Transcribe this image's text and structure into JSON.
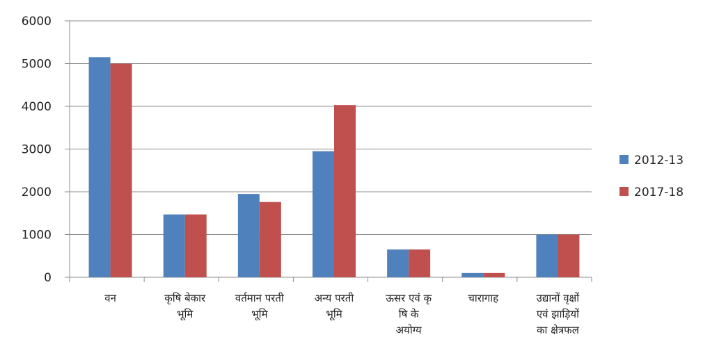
{
  "chart_data": {
    "type": "bar",
    "categories": [
      [
        "वन"
      ],
      [
        "कृषि बेकार",
        "भूमि"
      ],
      [
        "वर्तमान परती",
        "भूमि"
      ],
      [
        "अन्य परती",
        "भूमि"
      ],
      [
        "ऊसर एवं कृ",
        "षि के",
        "अयोग्य"
      ],
      [
        "चारागाह"
      ],
      [
        "उद्यानों वृक्षों",
        "एवं झाड़ियों",
        "का क्षेत्रफल"
      ]
    ],
    "series": [
      {
        "name": "2012-13",
        "color": "#4f81bd",
        "values": [
          5150,
          1470,
          1950,
          2950,
          650,
          100,
          1000
        ]
      },
      {
        "name": "2017-18",
        "color": "#c0504d",
        "values": [
          5000,
          1470,
          1760,
          4030,
          650,
          100,
          1000
        ]
      }
    ],
    "ylim": [
      0,
      6000
    ],
    "yticks": [
      0,
      1000,
      2000,
      3000,
      4000,
      5000,
      6000
    ],
    "grid": true,
    "legend": "right"
  }
}
